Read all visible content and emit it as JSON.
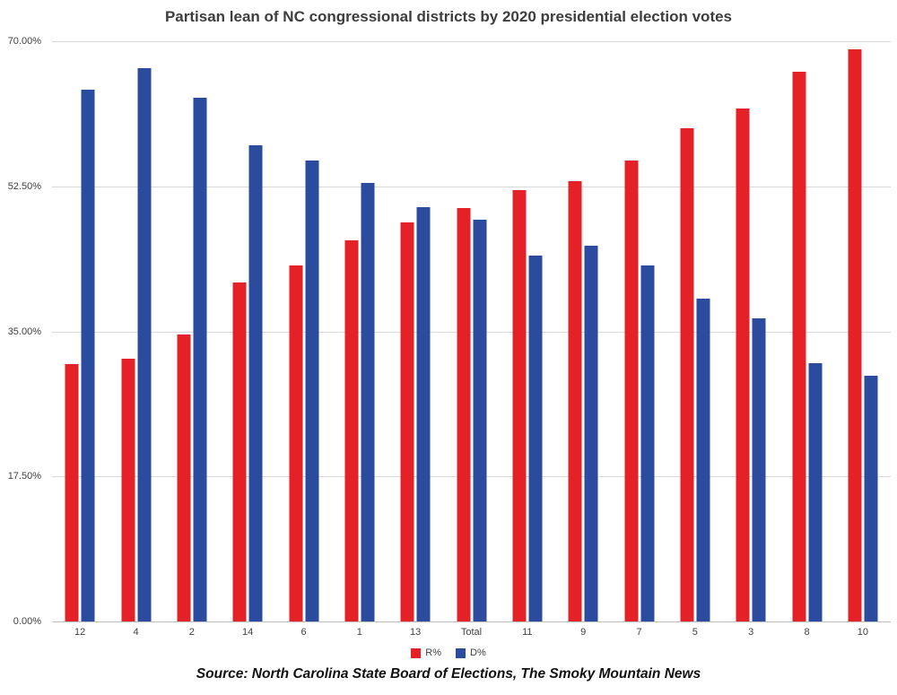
{
  "chart_data": {
    "type": "bar",
    "title": "Partisan lean of NC congressional districts by 2020 presidential election votes",
    "categories": [
      "12",
      "4",
      "2",
      "14",
      "6",
      "1",
      "13",
      "Total",
      "11",
      "9",
      "7",
      "5",
      "3",
      "8",
      "10"
    ],
    "series": [
      {
        "name": "R%",
        "color": "#e32126",
        "values": [
          31.0,
          31.7,
          34.6,
          40.9,
          43.0,
          46.0,
          48.2,
          49.9,
          52.0,
          53.1,
          55.6,
          59.5,
          61.9,
          66.3,
          69.0
        ]
      },
      {
        "name": "D%",
        "color": "#2a4b9e",
        "values": [
          64.2,
          66.8,
          63.2,
          57.4,
          55.6,
          52.9,
          50.0,
          48.5,
          44.1,
          45.3,
          43.0,
          38.9,
          36.6,
          31.2,
          29.6
        ]
      }
    ],
    "xlabel": "",
    "ylabel": "",
    "ylim": [
      0,
      70
    ],
    "yticks": [
      {
        "value": 0,
        "label": "0.00%"
      },
      {
        "value": 17.5,
        "label": "17.50%"
      },
      {
        "value": 35,
        "label": "35.00%"
      },
      {
        "value": 52.5,
        "label": "52.50%"
      },
      {
        "value": 70,
        "label": "70.00%"
      }
    ],
    "grid": true,
    "legend_position": "bottom",
    "source": "Source: North Carolina State Board of Elections, The Smoky Mountain News"
  },
  "colors": {
    "gridline": "#d9d9d9",
    "axis_line": "#bfbfbf",
    "tick_text": "#404040",
    "title_text": "#3d3d3d"
  }
}
